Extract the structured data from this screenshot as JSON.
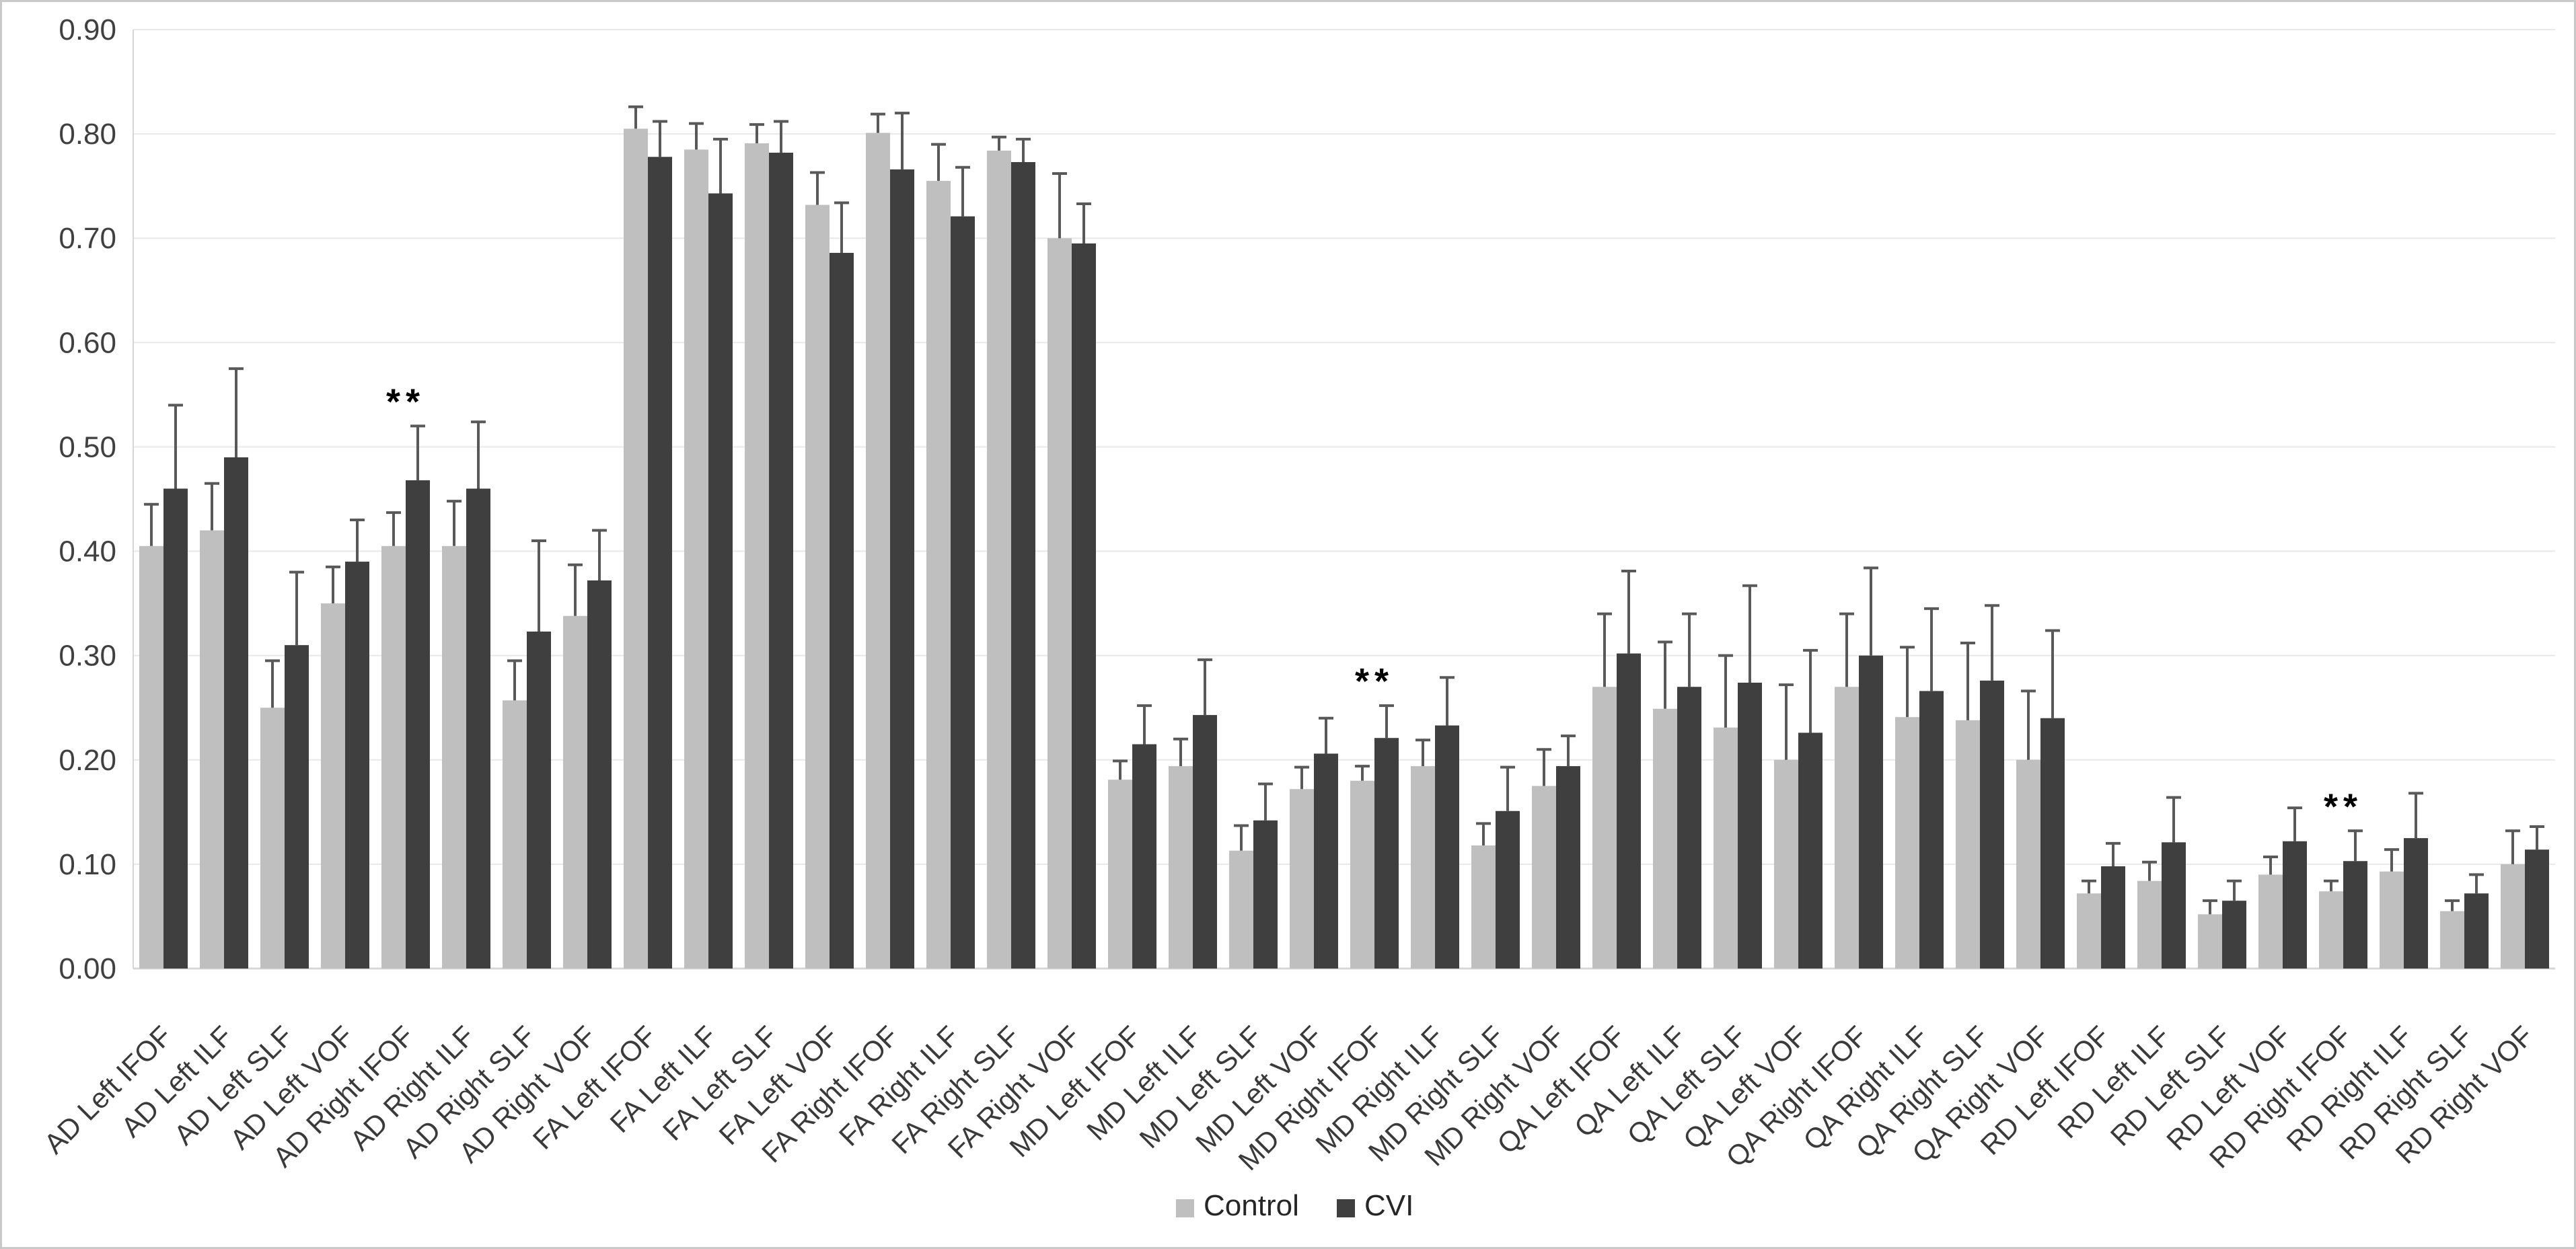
{
  "chart_data": {
    "type": "bar",
    "title": "",
    "xlabel": "",
    "ylabel": "",
    "ylim": [
      0,
      0.9
    ],
    "ytick_step": 0.1,
    "ytick_labels": [
      "0.00",
      "0.10",
      "0.20",
      "0.30",
      "0.40",
      "0.50",
      "0.60",
      "0.70",
      "0.80",
      "0.90"
    ],
    "grid": true,
    "legend_position": "bottom-center",
    "categories": [
      "AD Left IFOF",
      "AD Left ILF",
      "AD Left SLF",
      "AD Left VOF",
      "AD Right IFOF",
      "AD Right ILF",
      "AD Right SLF",
      "AD Right VOF",
      "FA Left IFOF",
      "FA Left ILF",
      "FA Left SLF",
      "FA Left VOF",
      "FA Right IFOF",
      "FA Right ILF",
      "FA Right SLF",
      "FA Right VOF",
      "MD Left IFOF",
      "MD Left ILF",
      "MD Left SLF",
      "MD Left VOF",
      "MD Right IFOF",
      "MD Right ILF",
      "MD Right SLF",
      "MD Right VOF",
      "QA Left IFOF",
      "QA Left ILF",
      "QA Left SLF",
      "QA Left VOF",
      "QA Right IFOF",
      "QA Right ILF",
      "QA Right SLF",
      "QA Right VOF",
      "RD Left IFOF",
      "RD Left ILF",
      "RD Left SLF",
      "RD Left VOF",
      "RD Right IFOF",
      "RD Right ILF",
      "RD Right SLF",
      "RD Right VOF"
    ],
    "series": [
      {
        "name": "Control",
        "color": "#BFBFBF",
        "values": [
          0.405,
          0.42,
          0.25,
          0.35,
          0.405,
          0.405,
          0.257,
          0.338,
          0.805,
          0.785,
          0.791,
          0.732,
          0.801,
          0.755,
          0.784,
          0.7,
          0.181,
          0.194,
          0.113,
          0.172,
          0.18,
          0.194,
          0.118,
          0.175,
          0.27,
          0.249,
          0.231,
          0.2,
          0.27,
          0.241,
          0.238,
          0.2,
          0.072,
          0.084,
          0.052,
          0.09,
          0.074,
          0.093,
          0.055,
          0.1
        ],
        "errors_plus": [
          0.04,
          0.045,
          0.045,
          0.035,
          0.032,
          0.043,
          0.038,
          0.049,
          0.021,
          0.025,
          0.018,
          0.031,
          0.018,
          0.035,
          0.013,
          0.062,
          0.018,
          0.026,
          0.024,
          0.021,
          0.014,
          0.025,
          0.021,
          0.035,
          0.07,
          0.064,
          0.069,
          0.072,
          0.07,
          0.067,
          0.074,
          0.066,
          0.012,
          0.018,
          0.013,
          0.017,
          0.01,
          0.021,
          0.01,
          0.032
        ]
      },
      {
        "name": "CVI",
        "color": "#3F3F3F",
        "values": [
          0.46,
          0.49,
          0.31,
          0.39,
          0.468,
          0.46,
          0.323,
          0.372,
          0.778,
          0.743,
          0.782,
          0.686,
          0.766,
          0.721,
          0.773,
          0.695,
          0.215,
          0.243,
          0.142,
          0.206,
          0.221,
          0.233,
          0.151,
          0.194,
          0.302,
          0.27,
          0.274,
          0.226,
          0.3,
          0.266,
          0.276,
          0.24,
          0.098,
          0.121,
          0.065,
          0.122,
          0.103,
          0.125,
          0.072,
          0.114
        ],
        "errors_plus": [
          0.08,
          0.085,
          0.07,
          0.04,
          0.052,
          0.064,
          0.087,
          0.048,
          0.034,
          0.052,
          0.03,
          0.048,
          0.054,
          0.047,
          0.022,
          0.038,
          0.037,
          0.053,
          0.035,
          0.034,
          0.031,
          0.046,
          0.042,
          0.029,
          0.079,
          0.07,
          0.093,
          0.079,
          0.084,
          0.079,
          0.072,
          0.084,
          0.022,
          0.043,
          0.019,
          0.032,
          0.029,
          0.043,
          0.018,
          0.022
        ]
      }
    ],
    "annotations": [
      {
        "category": "AD Right IFOF",
        "category_index": 4,
        "label": "**"
      },
      {
        "category": "MD Right IFOF",
        "category_index": 20,
        "label": "**"
      },
      {
        "category": "RD Right IFOF",
        "category_index": 36,
        "label": "**"
      }
    ],
    "error_bar_color": "#595959",
    "gridline_color": "#E8E8E8",
    "axis_line_color": "#D6D6D6",
    "tick_label_color": "#404040"
  },
  "legend": {
    "items": [
      {
        "label": "Control",
        "color": "#BFBFBF"
      },
      {
        "label": "CVI",
        "color": "#3F3F3F"
      }
    ]
  }
}
